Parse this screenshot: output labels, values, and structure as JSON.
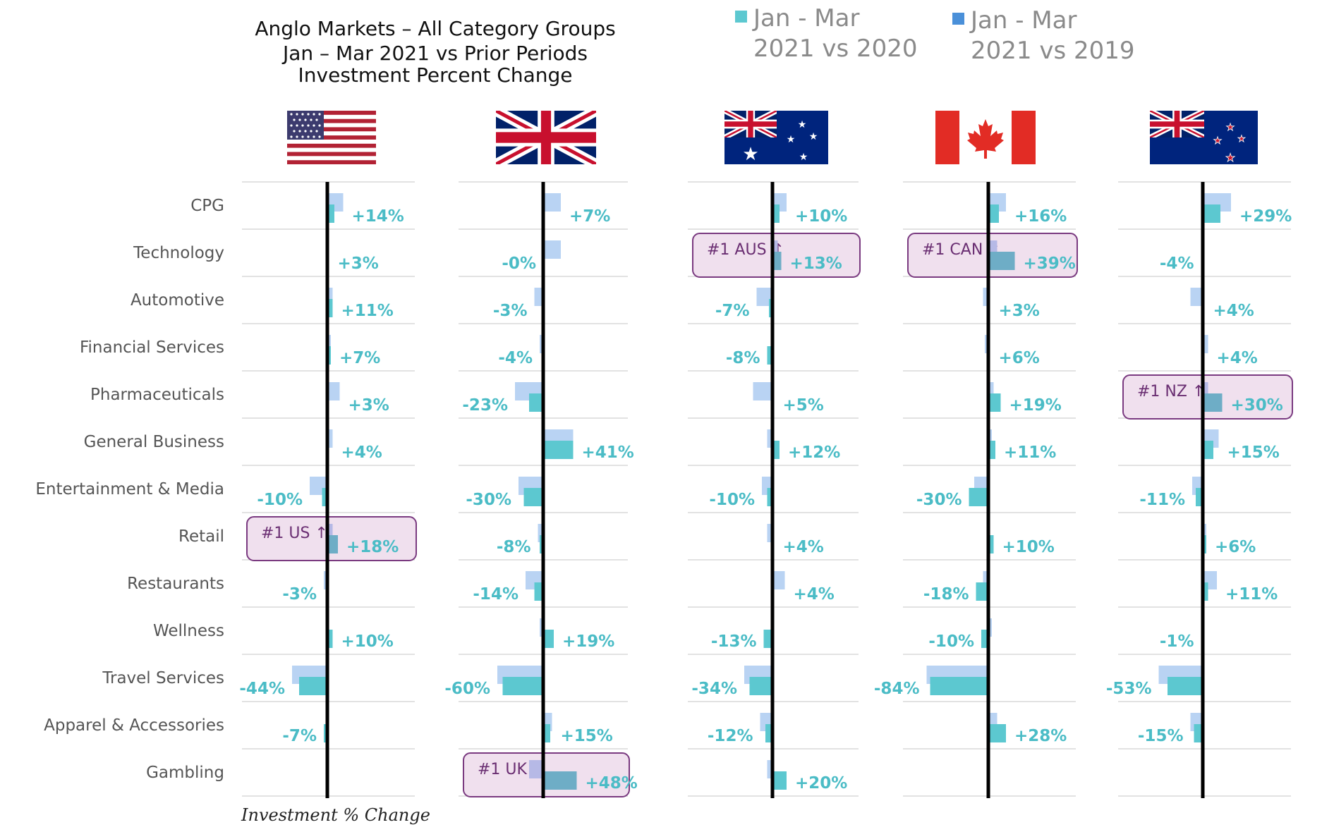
{
  "chart_data": {
    "type": "bar",
    "title": [
      "Anglo Markets – All Category Groups",
      "Jan – Mar 2021 vs Prior Periods",
      "Investment Percent Change"
    ],
    "xlabel": "Investment % Change",
    "legend": [
      {
        "line1": "Jan - Mar",
        "line2": "2021 vs 2020",
        "color": "#5cc8d0"
      },
      {
        "line1": "Jan - Mar",
        "line2": "2021 vs 2019",
        "color": "#4a90d9"
      }
    ],
    "legend_position": "top-right",
    "grid": true,
    "categories": [
      "CPG",
      "Technology",
      "Automotive",
      "Financial Services",
      "Pharmaceuticals",
      "General Business",
      "Entertainment & Media",
      "Retail",
      "Restaurants",
      "Wellness",
      "Travel Services",
      "Apparel & Accessories",
      "Gambling"
    ],
    "colors": {
      "vs2020": "#5cc8d0",
      "vs2019": "#b9d3f3",
      "highlight": "#6eadc6",
      "callout_fill": "#f0e0ee",
      "callout_border": "#7a3a80",
      "label": "#4bbcc6",
      "zero_line": "#000000"
    },
    "countries": [
      {
        "name": "US",
        "flag": "us-flag",
        "xlim": [
          -100,
          100
        ],
        "vs2020": [
          4,
          1,
          3,
          2,
          1,
          1,
          -3,
          6,
          -1,
          3,
          -16,
          -2,
          0
        ],
        "vs2019": [
          9,
          1,
          3,
          2,
          7,
          3,
          -10,
          3,
          -2,
          -1,
          -20,
          0,
          0
        ],
        "labels": [
          "+14%",
          "+3%",
          "+11%",
          "+7%",
          "+3%",
          "+4%",
          "-10%",
          "+18%",
          "-3%",
          "+10%",
          "-44%",
          "-7%",
          ""
        ],
        "callout": {
          "row": 7,
          "text": "#1 US ↑"
        }
      },
      {
        "name": "UK",
        "flag": "uk-flag",
        "xlim": [
          -100,
          100
        ],
        "vs2020": [
          1,
          0,
          0,
          0,
          -8,
          17,
          -11,
          -2,
          -5,
          6,
          -23,
          4,
          19
        ],
        "vs2019": [
          10,
          10,
          -5,
          -2,
          -16,
          17,
          -14,
          -3,
          -10,
          -2,
          -26,
          5,
          -8
        ],
        "labels": [
          "+7%",
          "-0%",
          "-3%",
          "-4%",
          "-23%",
          "+41%",
          "-30%",
          "-8%",
          "-14%",
          "+19%",
          "-60%",
          "+15%",
          "+48%"
        ],
        "callout": {
          "row": 12,
          "text": "#1 UK ↑"
        }
      },
      {
        "name": "AUS",
        "flag": "aus-flag",
        "xlim": [
          -100,
          100
        ],
        "vs2020": [
          4,
          5,
          -2,
          -3,
          1,
          4,
          -3,
          1,
          1,
          -5,
          -13,
          -4,
          8
        ],
        "vs2019": [
          8,
          3,
          -9,
          -1,
          -11,
          -3,
          -6,
          -3,
          7,
          1,
          -16,
          -7,
          -3
        ],
        "labels": [
          "+10%",
          "+13%",
          "-7%",
          "-8%",
          "+5%",
          "+12%",
          "-10%",
          "+4%",
          "+4%",
          "-13%",
          "-34%",
          "-12%",
          "+20%"
        ],
        "callout": {
          "row": 1,
          "text": "#1 AUS ↑"
        }
      },
      {
        "name": "CAN",
        "flag": "can-flag",
        "xlim": [
          -100,
          100
        ],
        "vs2020": [
          6,
          15,
          1,
          1,
          7,
          4,
          -11,
          3,
          -7,
          -4,
          -33,
          10,
          0
        ],
        "vs2019": [
          10,
          5,
          -3,
          -2,
          3,
          2,
          -8,
          1,
          -3,
          2,
          -35,
          5,
          0
        ],
        "labels": [
          "+16%",
          "+39%",
          "+3%",
          "+6%",
          "+19%",
          "+11%",
          "-30%",
          "+10%",
          "-18%",
          "-10%",
          "-84%",
          "+28%",
          ""
        ],
        "callout": {
          "row": 1,
          "text": "#1 CAN ↑"
        }
      },
      {
        "name": "NZ",
        "flag": "nz-flag",
        "xlim": [
          -100,
          100
        ],
        "vs2020": [
          10,
          -1,
          1,
          1,
          11,
          6,
          -4,
          2,
          3,
          0,
          -20,
          -5,
          0
        ],
        "vs2019": [
          16,
          1,
          -7,
          3,
          3,
          9,
          -6,
          2,
          8,
          -1,
          -25,
          -7,
          0
        ],
        "labels": [
          "+29%",
          "-4%",
          "+4%",
          "+4%",
          "+30%",
          "+15%",
          "-11%",
          "+6%",
          "+11%",
          "-1%",
          "-53%",
          "-15%",
          ""
        ],
        "callout": {
          "row": 4,
          "text": "#1 NZ ↑"
        }
      }
    ]
  }
}
